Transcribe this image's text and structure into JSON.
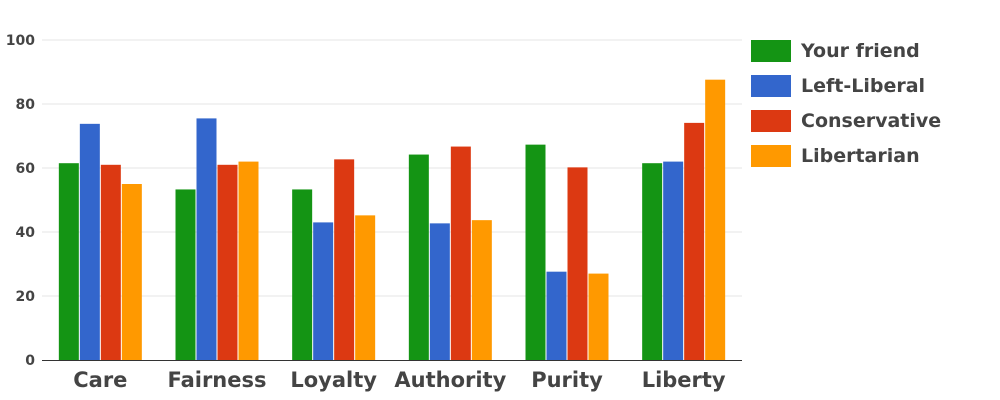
{
  "chart_data": {
    "type": "bar",
    "categories": [
      "Care",
      "Fairness",
      "Loyalty",
      "Authority",
      "Purity",
      "Liberty"
    ],
    "series": [
      {
        "name": "Your friend",
        "color": "#149414",
        "values": [
          61.5,
          53.3,
          53.3,
          64.2,
          67.3,
          61.5
        ]
      },
      {
        "name": "Left-Liberal",
        "color": "#3366cc",
        "values": [
          73.8,
          75.5,
          43.0,
          42.7,
          27.6,
          62.0
        ]
      },
      {
        "name": "Conservative",
        "color": "#dc3912",
        "values": [
          61.0,
          61.0,
          62.7,
          66.7,
          60.2,
          74.1
        ]
      },
      {
        "name": "Libertarian",
        "color": "#ff9900",
        "values": [
          55.0,
          62.0,
          45.2,
          43.7,
          27.0,
          87.6
        ]
      }
    ],
    "title": "",
    "xlabel": "",
    "ylabel": "",
    "ylim": [
      0,
      100
    ],
    "yticks": [
      0,
      20,
      40,
      60,
      80,
      100
    ],
    "grid": true,
    "legend_position": "right"
  }
}
